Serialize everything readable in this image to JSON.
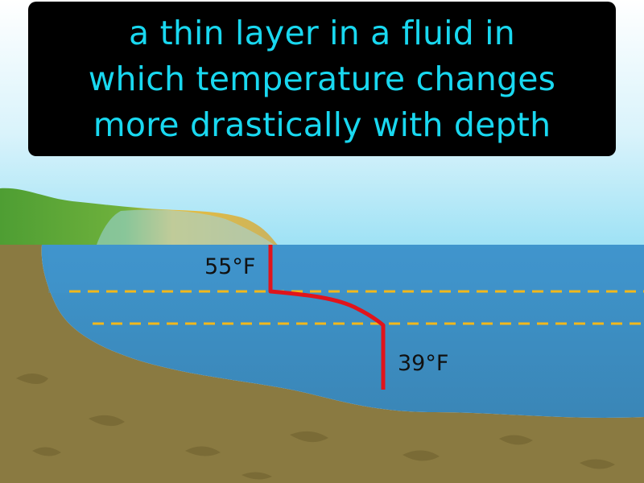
{
  "caption": {
    "line1": "a thin layer in a fluid in",
    "line2": "which temperature changes",
    "line3": "more drastically with depth"
  },
  "labels": {
    "surface_temp": "55°F",
    "deep_temp": "39°F"
  },
  "colors": {
    "caption_bg": "#000000",
    "caption_text": "#19d8f0",
    "sky": "#a9e6f6",
    "water": "#3d8fc4",
    "water_deep": "#3a86b7",
    "ground": "#8a7a41",
    "grass": "#57a83a",
    "sand": "#e8bd3c",
    "temperature_line": "#e0141c",
    "boundary_line": "#f2b81b"
  }
}
